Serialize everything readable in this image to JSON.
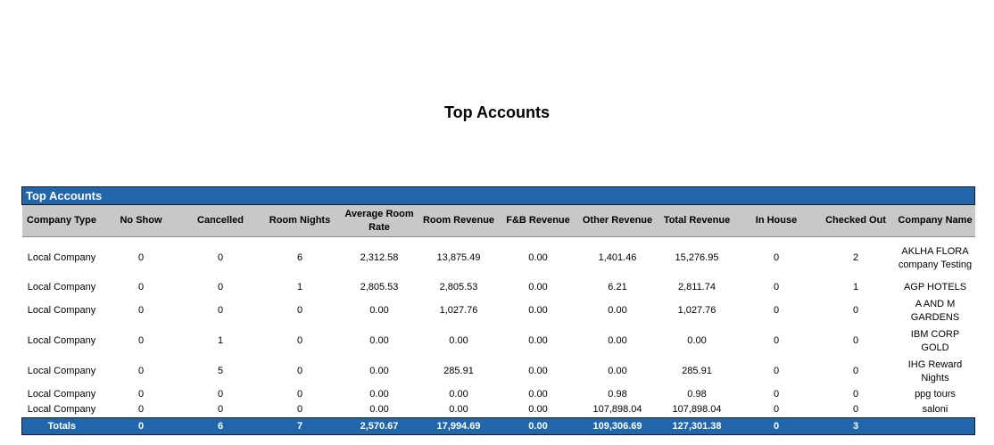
{
  "title": "Top Accounts",
  "table": {
    "caption": "Top Accounts",
    "columns": [
      "Company Type",
      "No Show",
      "Cancelled",
      "Room Nights",
      "Average Room Rate",
      "Room Revenue",
      "F&B Revenue",
      "Other Revenue",
      "Total Revenue",
      "In House",
      "Checked Out",
      "Company Name"
    ],
    "rows": [
      [
        "Local Company",
        "0",
        "0",
        "6",
        "2,312.58",
        "13,875.49",
        "0.00",
        "1,401.46",
        "15,276.95",
        "0",
        "2",
        "AKLHA FLORA company Testing"
      ],
      [
        "Local Company",
        "0",
        "0",
        "1",
        "2,805.53",
        "2,805.53",
        "0.00",
        "6.21",
        "2,811.74",
        "0",
        "1",
        "AGP HOTELS"
      ],
      [
        "Local Company",
        "0",
        "0",
        "0",
        "0.00",
        "1,027.76",
        "0.00",
        "0.00",
        "1,027.76",
        "0",
        "0",
        "A AND M GARDENS"
      ],
      [
        "Local Company",
        "0",
        "1",
        "0",
        "0.00",
        "0.00",
        "0.00",
        "0.00",
        "0.00",
        "0",
        "0",
        "IBM CORP GOLD"
      ],
      [
        "Local Company",
        "0",
        "5",
        "0",
        "0.00",
        "285.91",
        "0.00",
        "0.00",
        "285.91",
        "0",
        "0",
        "IHG Reward Nights"
      ],
      [
        "Local Company",
        "0",
        "0",
        "0",
        "0.00",
        "0.00",
        "0.00",
        "0.98",
        "0.98",
        "0",
        "0",
        "ppg tours"
      ],
      [
        "Local Company",
        "0",
        "0",
        "0",
        "0.00",
        "0.00",
        "0.00",
        "107,898.04",
        "107,898.04",
        "0",
        "0",
        "saloni"
      ]
    ],
    "totals": [
      "Totals",
      "0",
      "6",
      "7",
      "2,570.67",
      "17,994.69",
      "0.00",
      "109,306.69",
      "127,301.38",
      "0",
      "3",
      ""
    ]
  },
  "colors": {
    "accent": "#2166ab",
    "header_bg": "#c8c8c8"
  }
}
